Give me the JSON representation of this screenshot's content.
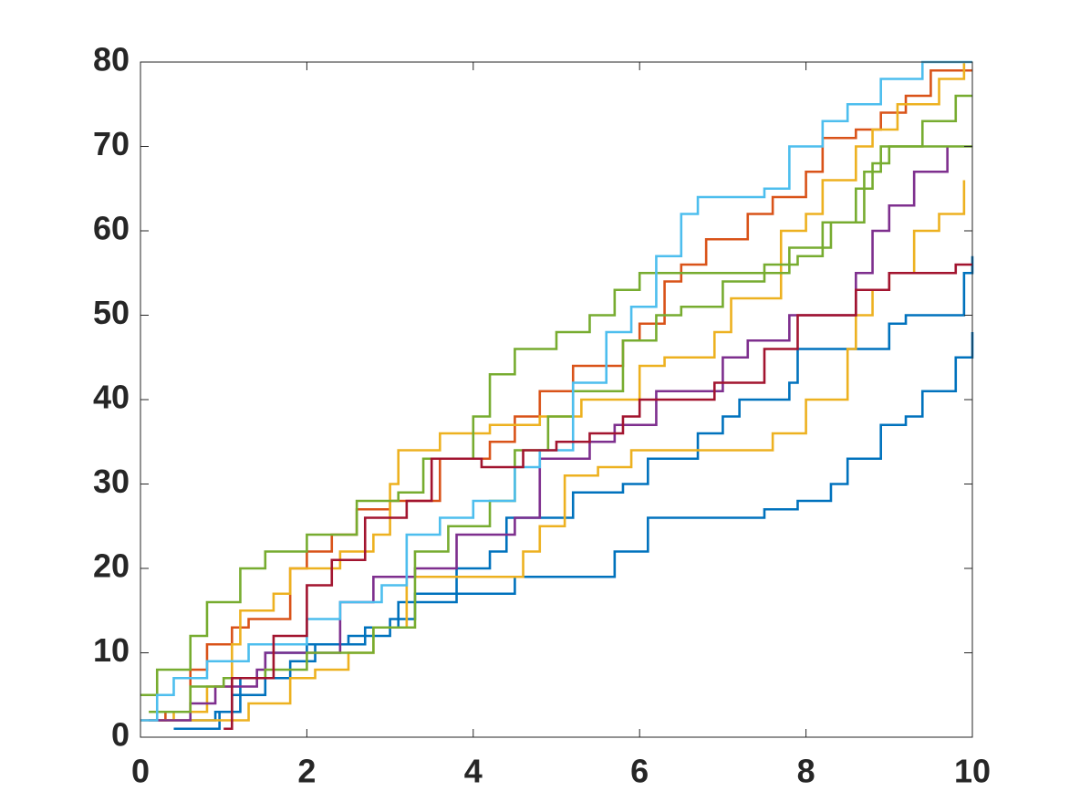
{
  "chart_data": {
    "type": "stairs",
    "xlim": [
      0,
      10
    ],
    "xticks": [
      0,
      2,
      4,
      6,
      8,
      10
    ],
    "ylim": [
      0,
      80
    ],
    "yticks": [
      0,
      10,
      20,
      30,
      40,
      50,
      60,
      70,
      80
    ],
    "box": true,
    "series": [
      {
        "color": "#0072BD",
        "x": [
          0.4,
          0.95,
          1.1,
          1.5,
          1.8,
          2.1,
          2.5,
          3.0,
          3.3,
          4.5,
          5.7,
          6.1,
          7.5,
          7.9,
          8.3,
          8.5,
          8.9,
          9.2,
          9.4,
          9.8,
          10
        ],
        "values": [
          1,
          3,
          5,
          7,
          9,
          11,
          12,
          14,
          17,
          19,
          22,
          26,
          27,
          28,
          30,
          33,
          37,
          38,
          41,
          45,
          48
        ]
      },
      {
        "color": "#0072BD",
        "x": [
          0.2,
          0.9,
          1.2,
          1.5,
          2.0,
          2.7,
          3.1,
          3.8,
          4.2,
          4.4,
          5.2,
          5.8,
          6.1,
          6.7,
          7.0,
          7.2,
          7.8,
          7.9,
          8.8,
          9.0,
          9.2,
          9.9,
          10
        ],
        "values": [
          2,
          3,
          7,
          10,
          11,
          13,
          16,
          20,
          22,
          26,
          29,
          30,
          33,
          36,
          38,
          40,
          42,
          46,
          46,
          49,
          50,
          55,
          57
        ]
      },
      {
        "color": "#D95319",
        "x": [
          0,
          0.3,
          0.6,
          0.8,
          1.1,
          1.3,
          1.8,
          2.0,
          2.3,
          2.6,
          3.0,
          3.6,
          4.2,
          4.5,
          4.8,
          5.2,
          5.8,
          6.0,
          6.3,
          6.5,
          6.8,
          7.3,
          7.6,
          8.0,
          8.2,
          8.6,
          8.9,
          9.2,
          9.5,
          10
        ],
        "values": [
          2,
          3,
          8,
          11,
          13,
          14,
          20,
          22,
          24,
          27,
          28,
          33,
          35,
          38,
          41,
          44,
          47,
          49,
          54,
          56,
          59,
          62,
          64,
          67,
          71,
          72,
          74,
          76,
          79,
          79
        ]
      },
      {
        "color": "#EDB120",
        "x": [
          0.1,
          0.4,
          0.8,
          1.1,
          1.2,
          1.6,
          1.8,
          2.4,
          2.8,
          3.0,
          3.1,
          3.6,
          4.2,
          4.8,
          5.3,
          5.6,
          6.0,
          6.3,
          6.9,
          7.1,
          7.7,
          8.0,
          8.2,
          8.6,
          8.8,
          9.1,
          9.6,
          9.9
        ],
        "values": [
          2,
          3,
          6,
          11,
          15,
          17,
          20,
          22,
          24,
          30,
          34,
          36,
          37,
          38,
          40,
          40,
          44,
          45,
          48,
          52,
          60,
          62,
          66,
          70,
          72,
          75,
          78,
          80
        ]
      },
      {
        "color": "#EDB120",
        "x": [
          0.2,
          1.3,
          1.8,
          2.1,
          2.5,
          2.8,
          3.2,
          4.5,
          4.6,
          4.8,
          5.1,
          5.5,
          5.9,
          7.3,
          7.6,
          8.0,
          8.5,
          8.6,
          8.8,
          9.0,
          9.3,
          9.6,
          9.9
        ],
        "values": [
          2,
          4,
          7,
          8,
          10,
          13,
          19,
          19,
          22,
          25,
          31,
          32,
          34,
          34,
          36,
          40,
          46,
          50,
          53,
          55,
          60,
          62,
          66
        ]
      },
      {
        "color": "#7E2F8E",
        "x": [
          0.1,
          0.6,
          0.9,
          1.4,
          1.5,
          2.4,
          2.8,
          3.3,
          3.8,
          4.5,
          4.8,
          5.4,
          5.7,
          6.2,
          6.5,
          7.0,
          7.3,
          7.8,
          8.5,
          8.6,
          8.8,
          9.0,
          9.3,
          9.7
        ],
        "values": [
          2,
          4,
          6,
          8,
          10,
          16,
          19,
          20,
          24,
          26,
          33,
          35,
          37,
          41,
          41,
          45,
          47,
          50,
          50,
          55,
          60,
          63,
          67,
          70
        ]
      },
      {
        "color": "#77AC30",
        "x": [
          0,
          0.2,
          0.6,
          0.8,
          1.2,
          1.5,
          2.0,
          2.6,
          3.1,
          3.4,
          4.0,
          4.2,
          4.5,
          5.0,
          5.4,
          5.7,
          6.0,
          7.8,
          8.3,
          8.7,
          8.9,
          9.4,
          9.8,
          10
        ],
        "values": [
          5,
          8,
          12,
          16,
          20,
          22,
          24,
          28,
          29,
          33,
          38,
          43,
          46,
          48,
          50,
          53,
          55,
          58,
          61,
          67,
          70,
          73,
          76,
          76
        ]
      },
      {
        "color": "#77AC30",
        "x": [
          0.1,
          0.6,
          1.0,
          1.5,
          2.0,
          2.8,
          3.3,
          3.7,
          4.2,
          4.5,
          4.9,
          5.2,
          5.8,
          6.2,
          6.5,
          7.0,
          7.5,
          7.9,
          8.2,
          8.6,
          8.8,
          9.0,
          10
        ],
        "values": [
          3,
          6,
          7,
          8,
          10,
          13,
          22,
          25,
          28,
          34,
          38,
          41,
          47,
          50,
          51,
          54,
          56,
          57,
          61,
          65,
          68,
          70,
          70
        ]
      },
      {
        "color": "#4DBEEE",
        "x": [
          0,
          0.2,
          0.4,
          0.8,
          1.3,
          2.0,
          2.4,
          2.9,
          3.2,
          3.6,
          4.0,
          4.5,
          4.8,
          5.2,
          5.6,
          5.9,
          6.2,
          6.5,
          6.7,
          7.5,
          7.8,
          8.2,
          8.5,
          8.9,
          9.4,
          10
        ],
        "values": [
          2,
          5,
          7,
          9,
          11,
          14,
          16,
          18,
          24,
          26,
          28,
          32,
          34,
          42,
          48,
          51,
          57,
          62,
          64,
          65,
          70,
          73,
          75,
          78,
          80,
          80
        ]
      },
      {
        "color": "#A2142F",
        "x": [
          1.0,
          1.1,
          1.6,
          2.0,
          2.3,
          2.7,
          3.2,
          3.5,
          4.1,
          4.6,
          5.0,
          5.4,
          5.8,
          6.0,
          6.9,
          7.5,
          7.9,
          8.6,
          9.0,
          9.8,
          10
        ],
        "values": [
          1,
          7,
          12,
          18,
          21,
          26,
          28,
          33,
          32,
          34,
          35,
          36,
          38,
          40,
          42,
          46,
          50,
          53,
          55,
          56,
          56
        ]
      }
    ]
  }
}
